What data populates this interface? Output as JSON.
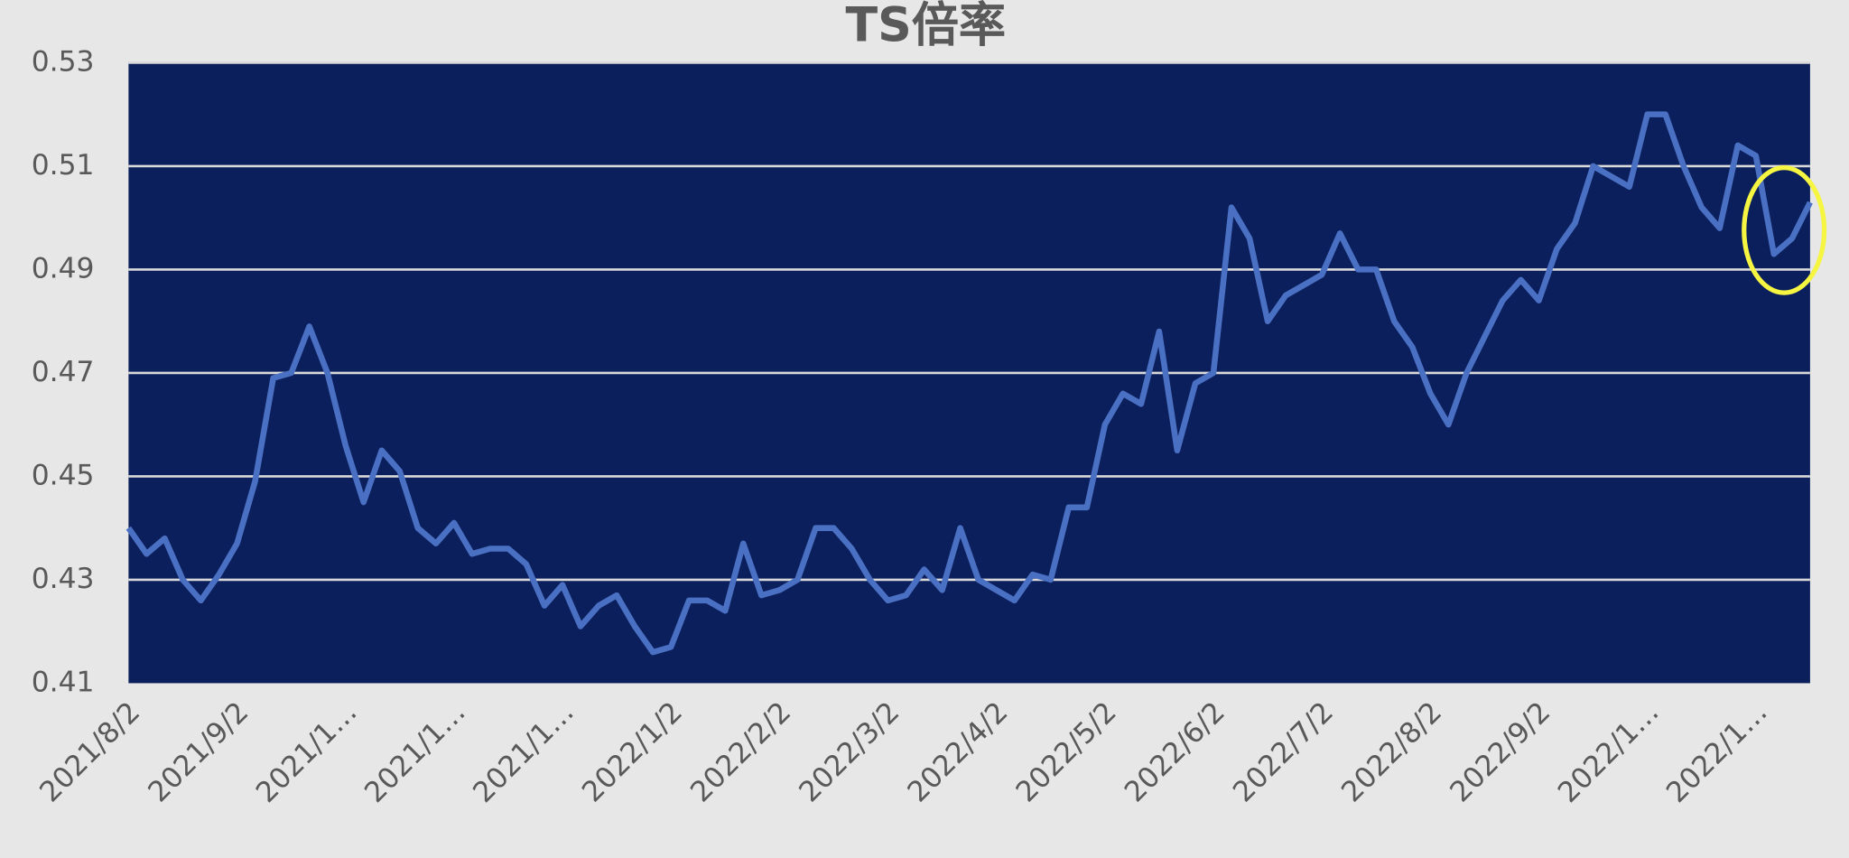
{
  "chart_data": {
    "type": "line",
    "title": "TS倍率",
    "categories": [
      "2021/8/2",
      null,
      null,
      null,
      null,
      null,
      "2021/9/2",
      null,
      null,
      null,
      null,
      null,
      "2021/1…",
      null,
      null,
      null,
      null,
      null,
      "2021/1…",
      null,
      null,
      null,
      null,
      null,
      "2021/1…",
      null,
      null,
      null,
      null,
      null,
      "2022/1/2",
      null,
      null,
      null,
      null,
      null,
      "2022/2/2",
      null,
      null,
      null,
      null,
      null,
      "2022/3/2",
      null,
      null,
      null,
      null,
      null,
      "2022/4/2",
      null,
      null,
      null,
      null,
      null,
      "2022/5/2",
      null,
      null,
      null,
      null,
      null,
      "2022/6/2",
      null,
      null,
      null,
      null,
      null,
      "2022/7/2",
      null,
      null,
      null,
      null,
      null,
      "2022/8/2",
      null,
      null,
      null,
      null,
      null,
      "2022/9/2",
      null,
      null,
      null,
      null,
      null,
      "2022/1…",
      null,
      null,
      null,
      null,
      null,
      "2022/1…",
      null,
      null,
      null
    ],
    "values": [
      0.44,
      0.435,
      0.438,
      0.43,
      0.426,
      0.431,
      0.437,
      0.449,
      0.469,
      0.47,
      0.479,
      0.47,
      0.456,
      0.445,
      0.455,
      0.451,
      0.44,
      0.437,
      0.441,
      0.435,
      0.436,
      0.436,
      0.433,
      0.425,
      0.429,
      0.421,
      0.425,
      0.427,
      0.421,
      0.416,
      0.417,
      0.426,
      0.426,
      0.424,
      0.437,
      0.427,
      0.428,
      0.43,
      0.44,
      0.44,
      0.436,
      0.43,
      0.426,
      0.427,
      0.432,
      0.428,
      0.44,
      0.43,
      0.428,
      0.426,
      0.431,
      0.43,
      0.444,
      0.444,
      0.46,
      0.466,
      0.464,
      0.478,
      0.455,
      0.468,
      0.47,
      0.502,
      0.496,
      0.48,
      0.485,
      0.487,
      0.489,
      0.497,
      0.49,
      0.49,
      0.48,
      0.475,
      0.466,
      0.46,
      0.47,
      0.477,
      0.484,
      0.488,
      0.484,
      0.494,
      0.499,
      0.51,
      0.508,
      0.506,
      0.52,
      0.52,
      0.51,
      0.502,
      0.498,
      0.514,
      0.512,
      0.493,
      0.496,
      0.503
    ],
    "color": "#4a70c4",
    "ylim": [
      0.41,
      0.53
    ],
    "yticks": [
      0.41,
      0.43,
      0.45,
      0.47,
      0.49,
      0.51,
      0.53
    ],
    "grid": true
  }
}
